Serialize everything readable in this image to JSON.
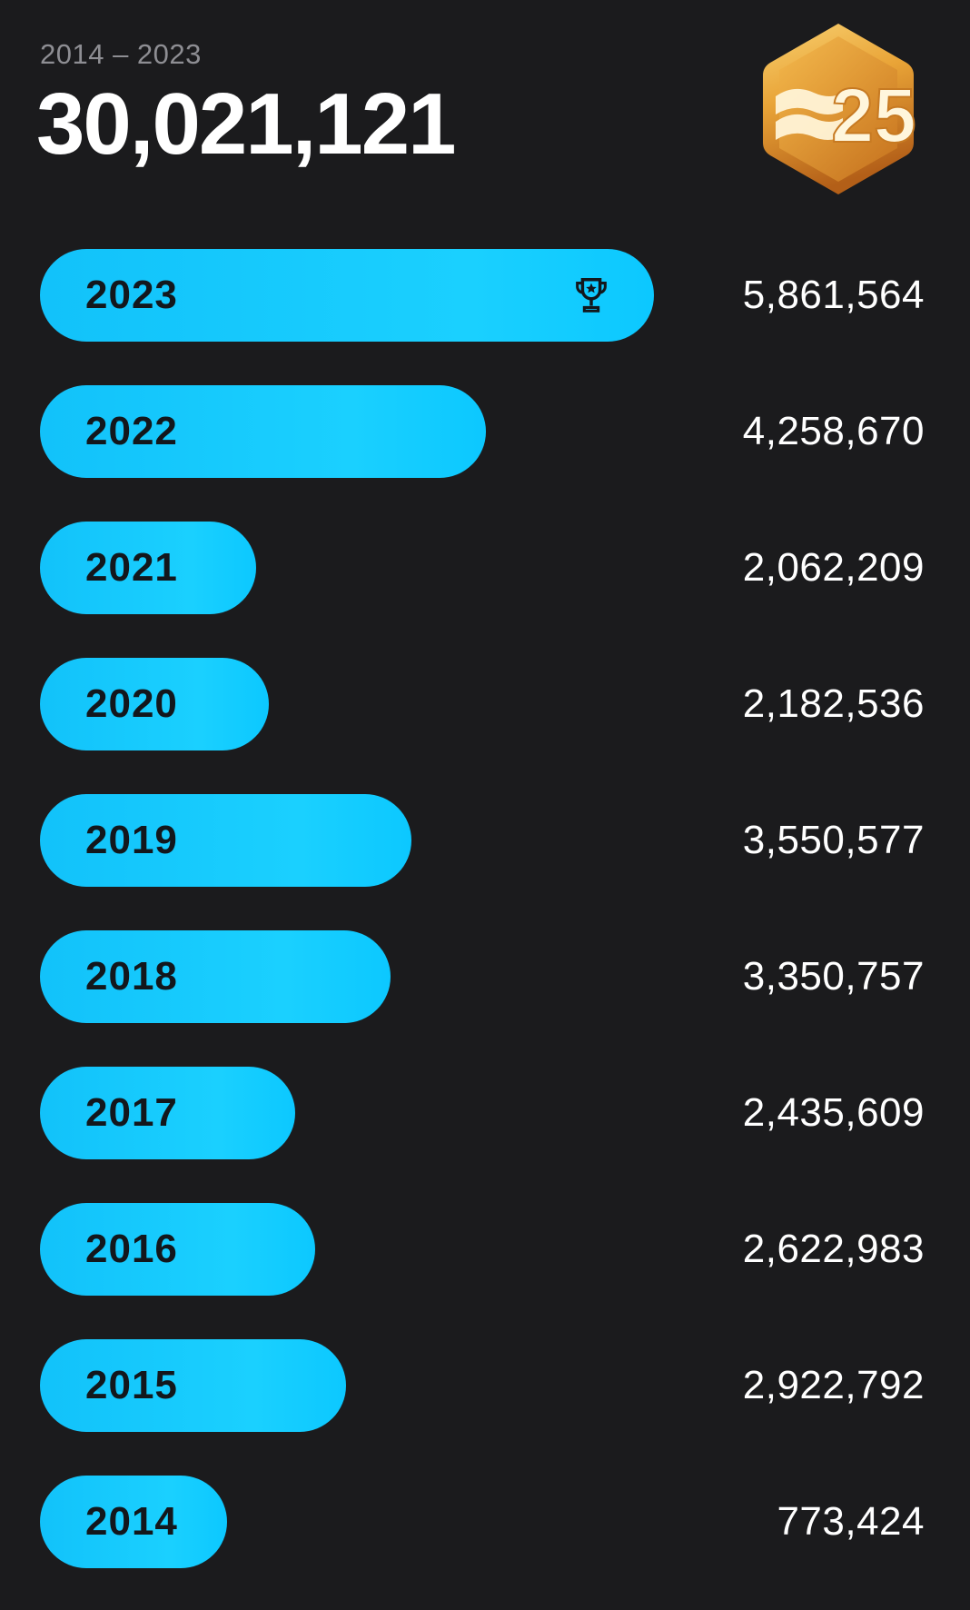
{
  "header": {
    "range": "2014 – 2023",
    "total": "30,021,121"
  },
  "badge": {
    "label": "25",
    "icon": "hexagon-25-badge-icon",
    "colors": {
      "light": "#f6c75a",
      "mid": "#e49a2c",
      "dark": "#b8621a"
    }
  },
  "colors": {
    "background": "#1b1b1d",
    "bar": "#12c2fa",
    "bar_text": "#13171c",
    "value_text": "#ffffff",
    "muted_text": "#8e8e93"
  },
  "chart_data": {
    "type": "bar",
    "orientation": "horizontal",
    "categories": [
      "2023",
      "2022",
      "2021",
      "2020",
      "2019",
      "2018",
      "2017",
      "2016",
      "2015",
      "2014"
    ],
    "value_labels": [
      "5,861,564",
      "4,258,670",
      "2,062,209",
      "2,182,536",
      "3,550,577",
      "3,350,757",
      "2,435,609",
      "2,622,983",
      "2,922,792",
      "773,424"
    ],
    "values": [
      5861564,
      4258670,
      2062209,
      2182536,
      3550577,
      3350757,
      2435609,
      2622983,
      2922792,
      773424
    ],
    "highlight": {
      "category": "2023",
      "icon": "trophy-icon"
    },
    "title": "",
    "xlabel": "",
    "ylabel": "",
    "grid": false,
    "legend": "none"
  }
}
